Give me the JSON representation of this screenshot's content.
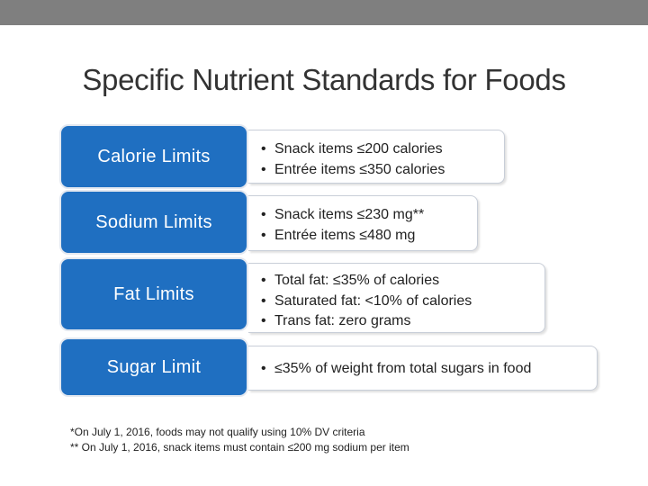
{
  "slide": {
    "title": "Specific Nutrient Standards for Foods"
  },
  "rows": [
    {
      "label": "Calorie Limits",
      "items": [
        "Snack items ≤200 calories",
        "Entrée items ≤350 calories"
      ]
    },
    {
      "label": "Sodium Limits",
      "items": [
        "Snack items ≤230 mg**",
        "Entrée items ≤480 mg"
      ]
    },
    {
      "label": "Fat Limits",
      "items": [
        "Total fat: ≤35% of calories",
        "Saturated fat: <10% of calories",
        "Trans fat: zero grams"
      ]
    },
    {
      "label": "Sugar Limit",
      "items": [
        "≤35% of weight from total sugars in food"
      ]
    }
  ],
  "footnotes": [
    "*On July 1, 2016, foods may not qualify using 10% DV criteria",
    "** On July 1, 2016, snack items must contain ≤200 mg sodium per item"
  ],
  "colors": {
    "top_bar": "#7f7f7f",
    "label_fill": "#1f6fc1"
  }
}
